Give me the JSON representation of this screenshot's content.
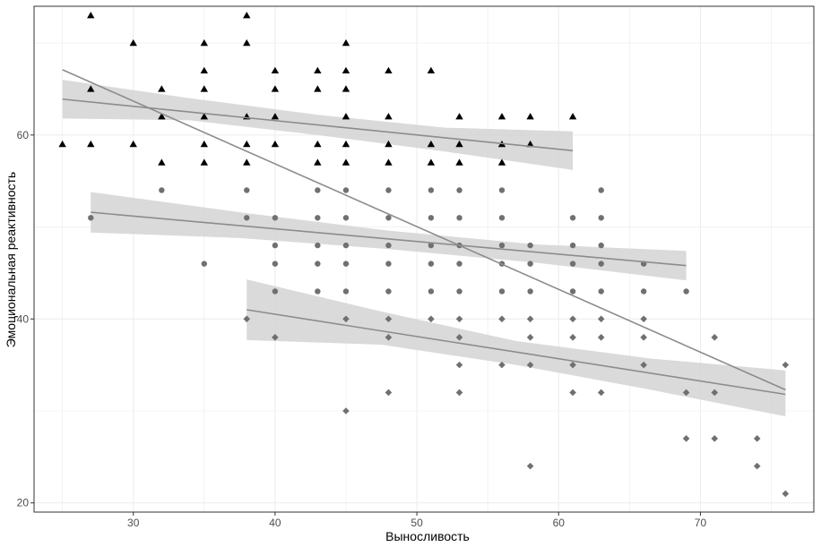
{
  "chart_data": {
    "type": "scatter",
    "title": "",
    "xlabel": "Выносливость",
    "ylabel": "Эмоциональная реактивность",
    "xlim": [
      23,
      78
    ],
    "ylim": [
      19,
      74
    ],
    "x_ticks": [
      30,
      40,
      50,
      60,
      70
    ],
    "y_ticks": [
      20,
      40,
      60
    ],
    "x_tick_labels": [
      "30",
      "40",
      "50",
      "60",
      "70"
    ],
    "y_tick_labels": [
      "20",
      "40",
      "60"
    ],
    "grid": true,
    "legend": "none",
    "colors": {
      "background": "#ffffff",
      "grid": "#ebebeb",
      "panel_border": "#333333",
      "points_high": "#000000",
      "points_mid": "#707070",
      "points_low": "#707070",
      "fit_line": "#8c8c8c",
      "ci_band": "#d3d3d3"
    },
    "series": [
      {
        "name": "high",
        "marker": "triangle",
        "points": [
          [
            25,
            59
          ],
          [
            27,
            73
          ],
          [
            27,
            65
          ],
          [
            27,
            59
          ],
          [
            30,
            70
          ],
          [
            30,
            59
          ],
          [
            32,
            65
          ],
          [
            32,
            62
          ],
          [
            32,
            57
          ],
          [
            35,
            70
          ],
          [
            35,
            67
          ],
          [
            35,
            65
          ],
          [
            35,
            62
          ],
          [
            35,
            59
          ],
          [
            35,
            57
          ],
          [
            38,
            73
          ],
          [
            38,
            70
          ],
          [
            38,
            62
          ],
          [
            38,
            59
          ],
          [
            38,
            57
          ],
          [
            40,
            67
          ],
          [
            40,
            65
          ],
          [
            40,
            62
          ],
          [
            40,
            59
          ],
          [
            43,
            67
          ],
          [
            43,
            65
          ],
          [
            43,
            59
          ],
          [
            43,
            57
          ],
          [
            45,
            70
          ],
          [
            45,
            67
          ],
          [
            45,
            65
          ],
          [
            45,
            62
          ],
          [
            45,
            59
          ],
          [
            45,
            57
          ],
          [
            48,
            67
          ],
          [
            48,
            62
          ],
          [
            48,
            59
          ],
          [
            48,
            57
          ],
          [
            51,
            67
          ],
          [
            51,
            59
          ],
          [
            51,
            57
          ],
          [
            53,
            62
          ],
          [
            53,
            59
          ],
          [
            53,
            57
          ],
          [
            56,
            62
          ],
          [
            56,
            59
          ],
          [
            56,
            57
          ],
          [
            58,
            62
          ],
          [
            58,
            59
          ],
          [
            61,
            62
          ]
        ],
        "fit": {
          "x": [
            25,
            61
          ],
          "y": [
            63.9,
            58.3
          ]
        },
        "ci": {
          "x": [
            25,
            34,
            43,
            52,
            61
          ],
          "upper": [
            66.0,
            64.0,
            62.2,
            60.8,
            60.4
          ],
          "lower": [
            61.8,
            61.6,
            60.0,
            58.2,
            56.2
          ]
        }
      },
      {
        "name": "mid",
        "marker": "circle",
        "points": [
          [
            27,
            51
          ],
          [
            32,
            54
          ],
          [
            35,
            46
          ],
          [
            38,
            54
          ],
          [
            38,
            51
          ],
          [
            40,
            51
          ],
          [
            40,
            48
          ],
          [
            40,
            46
          ],
          [
            40,
            43
          ],
          [
            43,
            54
          ],
          [
            43,
            51
          ],
          [
            43,
            48
          ],
          [
            43,
            46
          ],
          [
            43,
            43
          ],
          [
            45,
            54
          ],
          [
            45,
            51
          ],
          [
            45,
            48
          ],
          [
            45,
            46
          ],
          [
            45,
            43
          ],
          [
            48,
            54
          ],
          [
            48,
            51
          ],
          [
            48,
            48
          ],
          [
            48,
            46
          ],
          [
            48,
            43
          ],
          [
            51,
            54
          ],
          [
            51,
            51
          ],
          [
            51,
            48
          ],
          [
            51,
            46
          ],
          [
            51,
            43
          ],
          [
            53,
            54
          ],
          [
            53,
            51
          ],
          [
            53,
            48
          ],
          [
            53,
            46
          ],
          [
            53,
            43
          ],
          [
            56,
            54
          ],
          [
            56,
            51
          ],
          [
            56,
            48
          ],
          [
            56,
            46
          ],
          [
            56,
            43
          ],
          [
            58,
            48
          ],
          [
            58,
            46
          ],
          [
            58,
            43
          ],
          [
            61,
            51
          ],
          [
            61,
            48
          ],
          [
            61,
            46
          ],
          [
            61,
            43
          ],
          [
            63,
            54
          ],
          [
            63,
            51
          ],
          [
            63,
            48
          ],
          [
            63,
            46
          ],
          [
            63,
            43
          ],
          [
            66,
            46
          ],
          [
            66,
            43
          ],
          [
            69,
            43
          ]
        ],
        "fit": {
          "x": [
            27,
            69
          ],
          "y": [
            51.6,
            45.8
          ]
        },
        "ci": {
          "x": [
            27,
            37.5,
            48,
            58.5,
            69
          ],
          "upper": [
            53.8,
            51.6,
            49.6,
            48.1,
            47.4
          ],
          "lower": [
            49.4,
            48.8,
            47.6,
            46.1,
            44.2
          ]
        }
      },
      {
        "name": "low",
        "marker": "diamond",
        "points": [
          [
            38,
            40
          ],
          [
            40,
            38
          ],
          [
            45,
            40
          ],
          [
            45,
            30
          ],
          [
            48,
            40
          ],
          [
            48,
            38
          ],
          [
            48,
            32
          ],
          [
            51,
            40
          ],
          [
            53,
            40
          ],
          [
            53,
            38
          ],
          [
            53,
            35
          ],
          [
            53,
            32
          ],
          [
            56,
            40
          ],
          [
            56,
            35
          ],
          [
            58,
            40
          ],
          [
            58,
            38
          ],
          [
            58,
            35
          ],
          [
            58,
            24
          ],
          [
            61,
            40
          ],
          [
            61,
            38
          ],
          [
            61,
            35
          ],
          [
            61,
            32
          ],
          [
            63,
            40
          ],
          [
            63,
            38
          ],
          [
            63,
            32
          ],
          [
            66,
            40
          ],
          [
            66,
            38
          ],
          [
            66,
            35
          ],
          [
            69,
            32
          ],
          [
            69,
            27
          ],
          [
            71,
            38
          ],
          [
            71,
            32
          ],
          [
            71,
            27
          ],
          [
            74,
            27
          ],
          [
            74,
            24
          ],
          [
            76,
            35
          ],
          [
            76,
            21
          ]
        ],
        "fit": {
          "x": [
            38,
            76
          ],
          "y": [
            41.0,
            31.8
          ]
        },
        "ci": {
          "x": [
            38,
            47.5,
            57,
            66.5,
            76
          ],
          "upper": [
            44.3,
            40.8,
            37.6,
            35.7,
            34.4
          ],
          "lower": [
            37.7,
            37.2,
            35.0,
            32.3,
            29.4
          ]
        }
      },
      {
        "name": "overall",
        "marker": "none",
        "points": [],
        "fit": {
          "x": [
            25,
            76
          ],
          "y": [
            67.1,
            32.3
          ]
        }
      }
    ]
  }
}
